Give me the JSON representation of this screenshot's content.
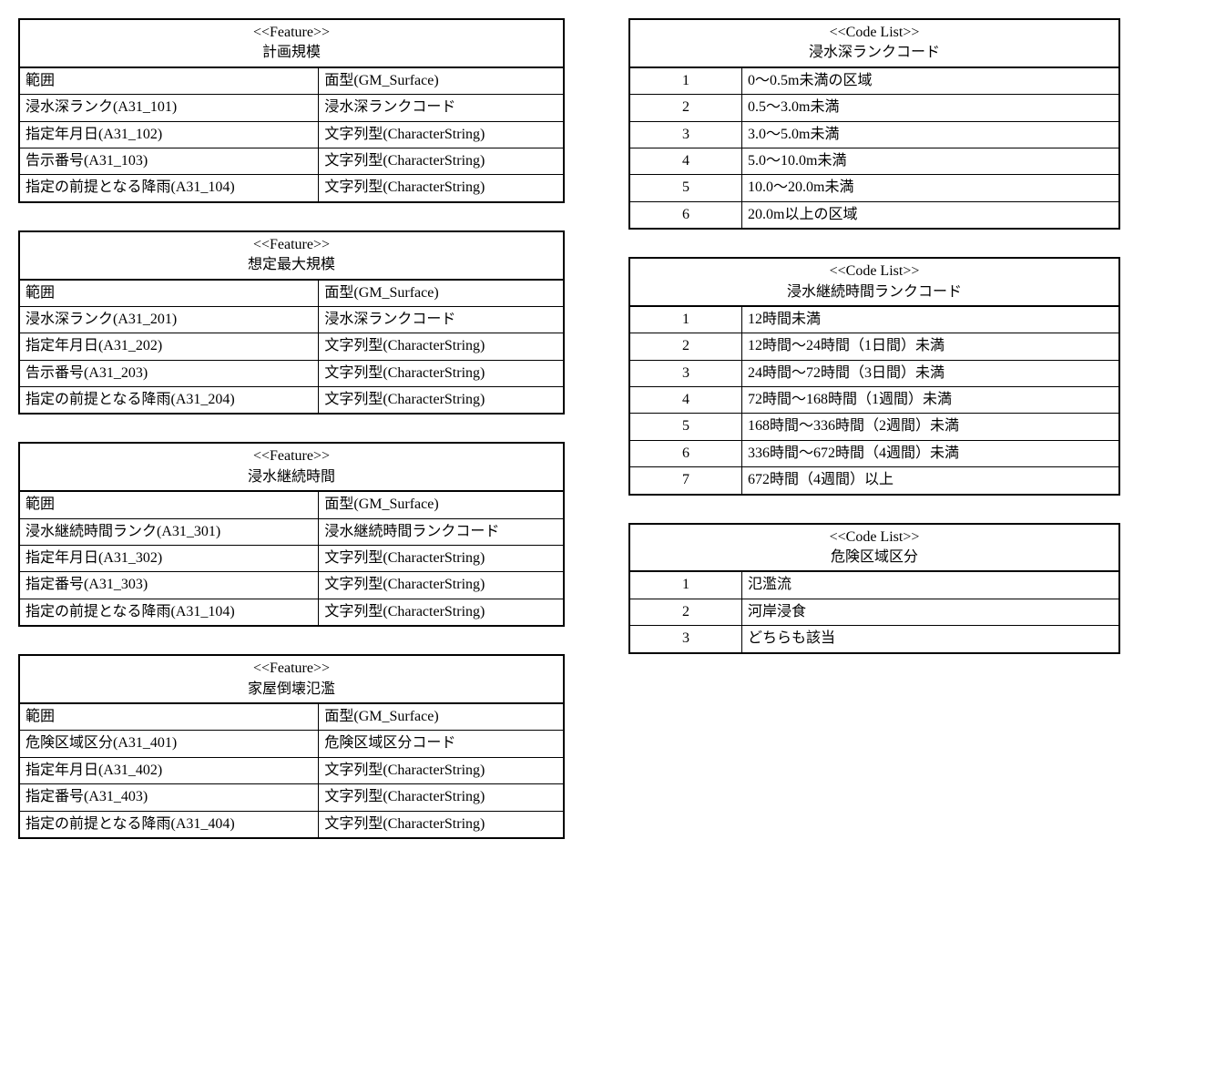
{
  "features": [
    {
      "stereotype": "<<Feature>>",
      "title": "計画規模",
      "rows": [
        {
          "attr": "範囲",
          "type": "面型(GM_Surface)"
        },
        {
          "attr": "浸水深ランク(A31_101)",
          "type": "浸水深ランクコード"
        },
        {
          "attr": "指定年月日(A31_102)",
          "type": "文字列型(CharacterString)"
        },
        {
          "attr": "告示番号(A31_103)",
          "type": "文字列型(CharacterString)"
        },
        {
          "attr": "指定の前提となる降雨(A31_104)",
          "type": "文字列型(CharacterString)"
        }
      ]
    },
    {
      "stereotype": "<<Feature>>",
      "title": "想定最大規模",
      "rows": [
        {
          "attr": "範囲",
          "type": "面型(GM_Surface)"
        },
        {
          "attr": "浸水深ランク(A31_201)",
          "type": "浸水深ランクコード"
        },
        {
          "attr": "指定年月日(A31_202)",
          "type": "文字列型(CharacterString)"
        },
        {
          "attr": "告示番号(A31_203)",
          "type": "文字列型(CharacterString)"
        },
        {
          "attr": "指定の前提となる降雨(A31_204)",
          "type": "文字列型(CharacterString)"
        }
      ]
    },
    {
      "stereotype": "<<Feature>>",
      "title": "浸水継続時間",
      "rows": [
        {
          "attr": "範囲",
          "type": "面型(GM_Surface)"
        },
        {
          "attr": "浸水継続時間ランク(A31_301)",
          "type": "浸水継続時間ランクコード"
        },
        {
          "attr": "指定年月日(A31_302)",
          "type": "文字列型(CharacterString)"
        },
        {
          "attr": "指定番号(A31_303)",
          "type": "文字列型(CharacterString)"
        },
        {
          "attr": "指定の前提となる降雨(A31_104)",
          "type": "文字列型(CharacterString)"
        }
      ]
    },
    {
      "stereotype": "<<Feature>>",
      "title": "家屋倒壊氾濫",
      "rows": [
        {
          "attr": "範囲",
          "type": "面型(GM_Surface)"
        },
        {
          "attr": "危険区域区分(A31_401)",
          "type": "危険区域区分コード"
        },
        {
          "attr": "指定年月日(A31_402)",
          "type": "文字列型(CharacterString)"
        },
        {
          "attr": "指定番号(A31_403)",
          "type": "文字列型(CharacterString)"
        },
        {
          "attr": "指定の前提となる降雨(A31_404)",
          "type": "文字列型(CharacterString)"
        }
      ]
    }
  ],
  "codelists": [
    {
      "stereotype": "<<Code List>>",
      "title": "浸水深ランクコード",
      "rows": [
        {
          "code": "1",
          "desc": "0～0.5m未満の区域"
        },
        {
          "code": "2",
          "desc": "0.5～3.0m未満"
        },
        {
          "code": "3",
          "desc": "3.0～5.0m未満"
        },
        {
          "code": "4",
          "desc": "5.0～10.0m未満"
        },
        {
          "code": "5",
          "desc": "10.0～20.0m未満"
        },
        {
          "code": "6",
          "desc": "20.0m以上の区域"
        }
      ]
    },
    {
      "stereotype": "<<Code List>>",
      "title": "浸水継続時間ランクコード",
      "rows": [
        {
          "code": "1",
          "desc": "12時間未満"
        },
        {
          "code": "2",
          "desc": "12時間～24時間（1日間）未満"
        },
        {
          "code": "3",
          "desc": "24時間～72時間（3日間）未満"
        },
        {
          "code": "4",
          "desc": "72時間～168時間（1週間）未満"
        },
        {
          "code": "5",
          "desc": "168時間～336時間（2週間）未満"
        },
        {
          "code": "6",
          "desc": "336時間～672時間（4週間）未満"
        },
        {
          "code": "7",
          "desc": "672時間（4週間）以上"
        }
      ]
    },
    {
      "stereotype": "<<Code List>>",
      "title": "危険区域区分",
      "rows": [
        {
          "code": "1",
          "desc": "氾濫流"
        },
        {
          "code": "2",
          "desc": "河岸浸食"
        },
        {
          "code": "3",
          "desc": "どちらも該当"
        }
      ]
    }
  ]
}
